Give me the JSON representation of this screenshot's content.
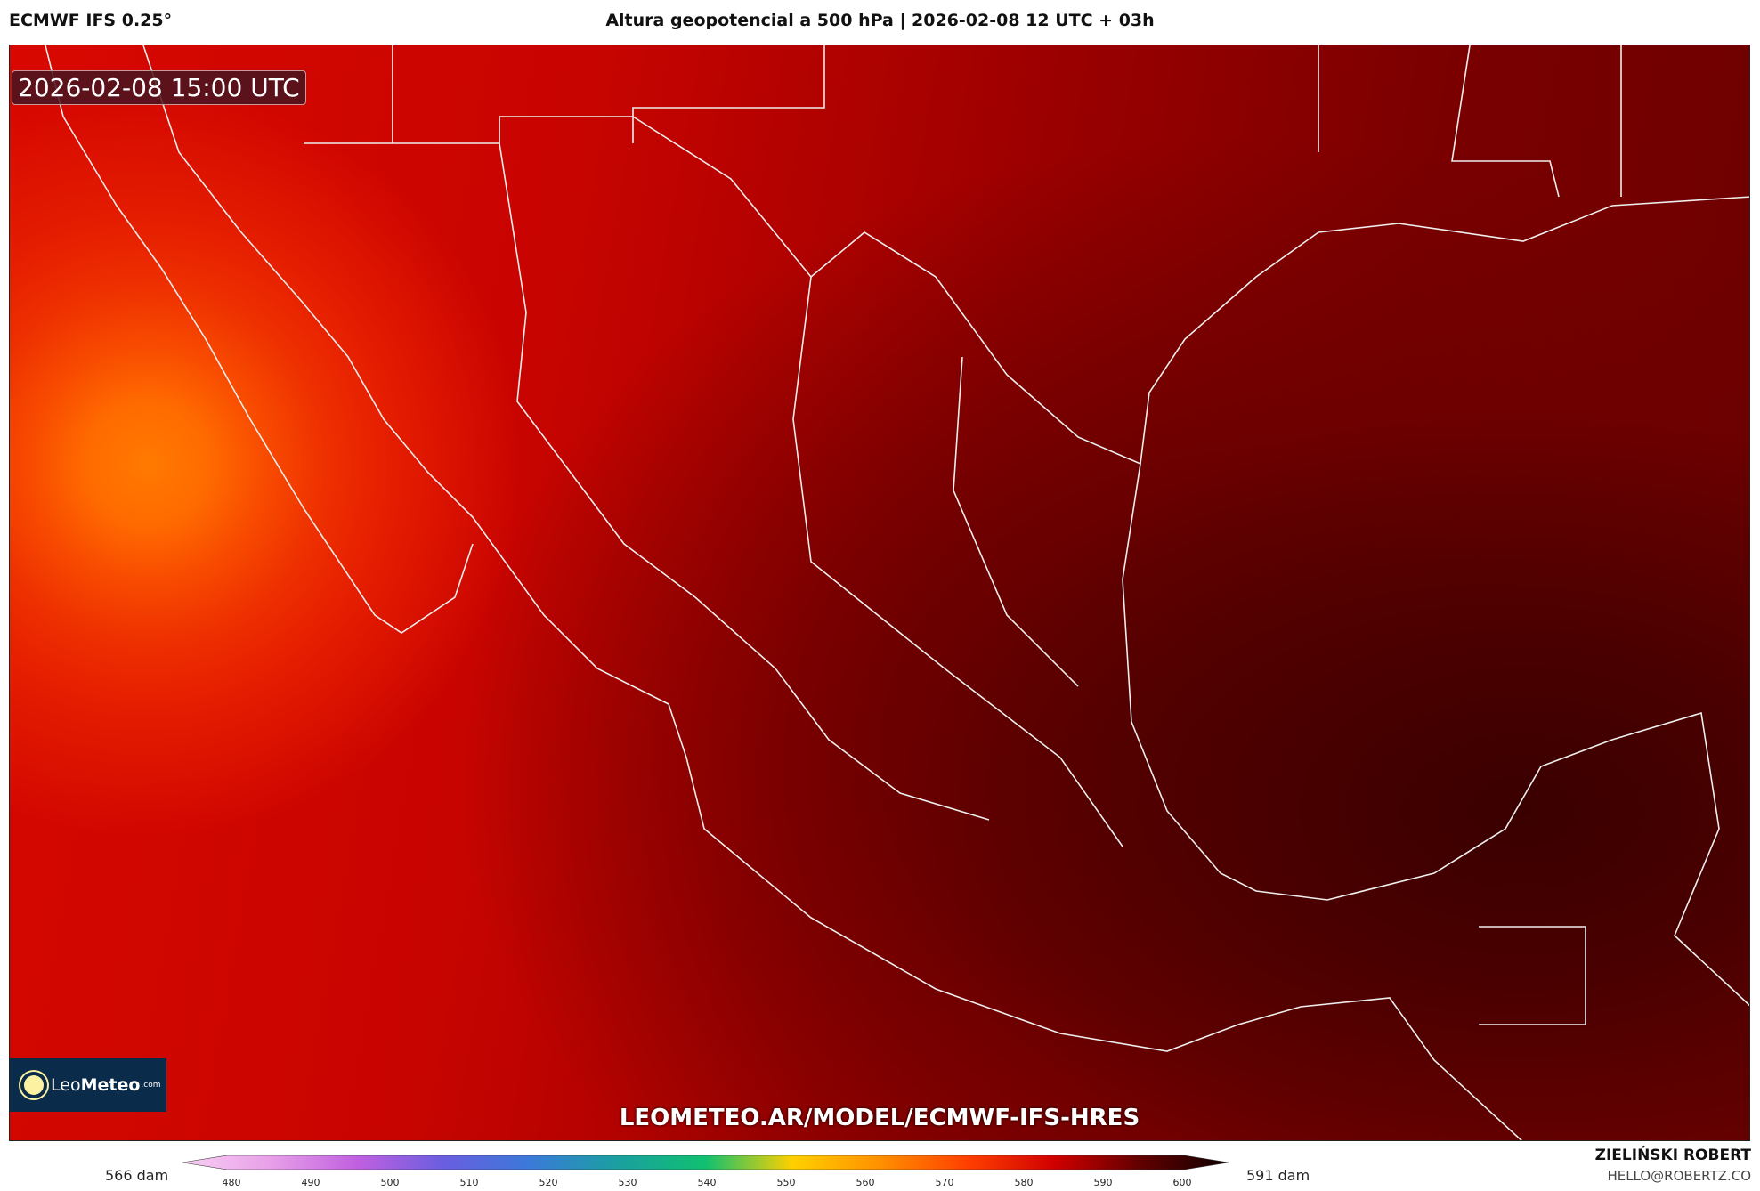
{
  "header": {
    "model": "ECMWF IFS 0.25°",
    "title": "Altura geopotencial a 500 hPa | 2026-02-08 12 UTC + 03h"
  },
  "map": {
    "timestamp": "2026-02-08 15:00 UTC",
    "url": "LEOMETEO.AR/MODEL/ECMWF-IFS-HRES",
    "logo": {
      "part1": "Leo",
      "part2": "Meteo",
      "part3": ".com"
    }
  },
  "colorbar": {
    "min_label": "566 dam",
    "max_label": "591 dam",
    "unit": "dam",
    "ticks": [
      "480",
      "490",
      "500",
      "510",
      "520",
      "530",
      "540",
      "550",
      "560",
      "570",
      "580",
      "590",
      "600"
    ],
    "colors": [
      "#f9d0f5",
      "#e8a0e8",
      "#c060e0",
      "#6a5ee0",
      "#3a7ad8",
      "#1aa0a0",
      "#10c070",
      "#ffd000",
      "#ff9000",
      "#ff4000",
      "#d00000",
      "#600000",
      "#100000"
    ]
  },
  "footer": {
    "author": "ZIELIŃSKI ROBERT",
    "email": "HELLO@ROBERTZ.CO"
  }
}
